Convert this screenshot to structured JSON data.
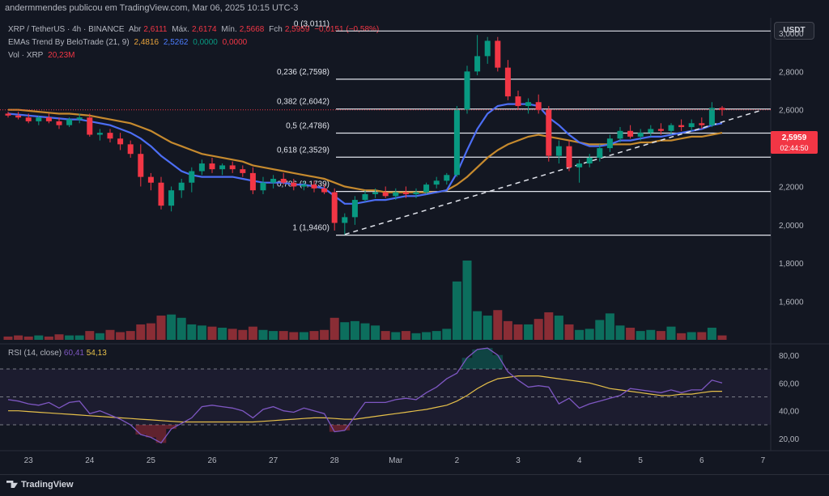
{
  "header": {
    "publisher": "andermmendes publicou em TradingView.com, Mar 06, 2025 10:15 UTC-3"
  },
  "legend": {
    "symbol": "XRP / TetherUS · 4h · BINANCE",
    "open_label": "Abr",
    "open": "2,6111",
    "high_label": "Máx.",
    "high": "2,6174",
    "low_label": "Mín.",
    "low": "2,5668",
    "close_label": "Fch",
    "close": "2,5959",
    "change": "−0,0151 (−0,58%)",
    "ema_name": "EMAs Trend By BeloTrade (21, 9)",
    "ema1": "2,4816",
    "ema2": "2,5262",
    "ema3": "0,0000",
    "ema4": "0,0000",
    "vol_label": "Vol · XRP",
    "vol_value": "20,23M"
  },
  "currency_button": "USDT",
  "price_badge": {
    "price": "2,5959",
    "countdown": "02:44:50"
  },
  "rsi_legend": {
    "name": "RSI (14, close)",
    "rsi": "60,41",
    "ma": "54,13"
  },
  "branding": "TradingView",
  "colors": {
    "up": "#089981",
    "down": "#f23645",
    "ema_fast": "#4c6ef5",
    "ema_slow": "#c68a2e",
    "rsi": "#7e57c2",
    "rsi_ma": "#e6c04a"
  },
  "chart_data": {
    "type": "candlestick",
    "title": "XRP / TetherUS · 4h · BINANCE",
    "price_axis": {
      "ticks": [
        "3,0000",
        "2,8000",
        "2,6000",
        "2,4000",
        "2,2000",
        "2,0000",
        "1,8000",
        "1,6000"
      ],
      "values": [
        3.0,
        2.8,
        2.6,
        2.4,
        2.2,
        2.0,
        1.8,
        1.6
      ],
      "range": [
        1.4,
        3.08
      ]
    },
    "x_ticks": [
      {
        "label": "23",
        "index": 2
      },
      {
        "label": "24",
        "index": 8
      },
      {
        "label": "25",
        "index": 14
      },
      {
        "label": "26",
        "index": 20
      },
      {
        "label": "27",
        "index": 26
      },
      {
        "label": "28",
        "index": 32
      },
      {
        "label": "Mar",
        "index": 38
      },
      {
        "label": "2",
        "index": 44
      },
      {
        "label": "3",
        "index": 50
      },
      {
        "label": "4",
        "index": 56
      },
      {
        "label": "5",
        "index": 62
      },
      {
        "label": "6",
        "index": 68
      },
      {
        "label": "7",
        "index": 74
      }
    ],
    "candles": [
      [
        2.58,
        2.59,
        2.56,
        2.57
      ],
      [
        2.57,
        2.59,
        2.55,
        2.56
      ],
      [
        2.56,
        2.58,
        2.53,
        2.54
      ],
      [
        2.54,
        2.57,
        2.52,
        2.56
      ],
      [
        2.56,
        2.58,
        2.53,
        2.54
      ],
      [
        2.54,
        2.56,
        2.5,
        2.52
      ],
      [
        2.52,
        2.56,
        2.51,
        2.55
      ],
      [
        2.55,
        2.58,
        2.53,
        2.56
      ],
      [
        2.56,
        2.58,
        2.46,
        2.47
      ],
      [
        2.47,
        2.5,
        2.44,
        2.48
      ],
      [
        2.48,
        2.5,
        2.43,
        2.45
      ],
      [
        2.45,
        2.48,
        2.39,
        2.42
      ],
      [
        2.42,
        2.44,
        2.35,
        2.37
      ],
      [
        2.37,
        2.42,
        2.2,
        2.25
      ],
      [
        2.25,
        2.27,
        2.18,
        2.22
      ],
      [
        2.22,
        2.25,
        2.08,
        2.1
      ],
      [
        2.1,
        2.2,
        2.07,
        2.18
      ],
      [
        2.18,
        2.24,
        2.14,
        2.22
      ],
      [
        2.22,
        2.3,
        2.17,
        2.28
      ],
      [
        2.28,
        2.34,
        2.26,
        2.32
      ],
      [
        2.32,
        2.35,
        2.27,
        2.29
      ],
      [
        2.29,
        2.32,
        2.26,
        2.31
      ],
      [
        2.31,
        2.33,
        2.27,
        2.29
      ],
      [
        2.29,
        2.31,
        2.25,
        2.27
      ],
      [
        2.27,
        2.3,
        2.16,
        2.18
      ],
      [
        2.18,
        2.25,
        2.16,
        2.22
      ],
      [
        2.22,
        2.26,
        2.19,
        2.24
      ],
      [
        2.24,
        2.27,
        2.21,
        2.22
      ],
      [
        2.22,
        2.24,
        2.18,
        2.2
      ],
      [
        2.2,
        2.23,
        2.18,
        2.21
      ],
      [
        2.21,
        2.23,
        2.17,
        2.19
      ],
      [
        2.19,
        2.21,
        2.16,
        2.17
      ],
      [
        2.17,
        2.19,
        1.97,
        2.01
      ],
      [
        2.01,
        2.06,
        1.95,
        2.04
      ],
      [
        2.04,
        2.15,
        2.0,
        2.13
      ],
      [
        2.13,
        2.18,
        2.12,
        2.16
      ],
      [
        2.16,
        2.19,
        2.14,
        2.17
      ],
      [
        2.17,
        2.2,
        2.14,
        2.15
      ],
      [
        2.15,
        2.19,
        2.13,
        2.17
      ],
      [
        2.17,
        2.2,
        2.14,
        2.16
      ],
      [
        2.16,
        2.19,
        2.14,
        2.17
      ],
      [
        2.17,
        2.22,
        2.16,
        2.21
      ],
      [
        2.21,
        2.25,
        2.19,
        2.23
      ],
      [
        2.23,
        2.27,
        2.21,
        2.26
      ],
      [
        2.26,
        2.62,
        2.25,
        2.6
      ],
      [
        2.6,
        2.83,
        2.58,
        2.8
      ],
      [
        2.8,
        2.99,
        2.78,
        2.88
      ],
      [
        2.88,
        2.98,
        2.84,
        2.96
      ],
      [
        2.96,
        2.98,
        2.8,
        2.82
      ],
      [
        2.82,
        2.86,
        2.65,
        2.67
      ],
      [
        2.67,
        2.7,
        2.6,
        2.62
      ],
      [
        2.62,
        2.66,
        2.58,
        2.64
      ],
      [
        2.64,
        2.68,
        2.58,
        2.6
      ],
      [
        2.6,
        2.62,
        2.33,
        2.36
      ],
      [
        2.36,
        2.44,
        2.32,
        2.41
      ],
      [
        2.41,
        2.44,
        2.28,
        2.3
      ],
      [
        2.3,
        2.34,
        2.22,
        2.32
      ],
      [
        2.32,
        2.37,
        2.3,
        2.35
      ],
      [
        2.35,
        2.42,
        2.33,
        2.4
      ],
      [
        2.4,
        2.47,
        2.38,
        2.45
      ],
      [
        2.45,
        2.51,
        2.43,
        2.49
      ],
      [
        2.49,
        2.52,
        2.45,
        2.46
      ],
      [
        2.46,
        2.5,
        2.44,
        2.48
      ],
      [
        2.48,
        2.52,
        2.46,
        2.5
      ],
      [
        2.5,
        2.53,
        2.47,
        2.49
      ],
      [
        2.49,
        2.53,
        2.47,
        2.52
      ],
      [
        2.52,
        2.55,
        2.49,
        2.51
      ],
      [
        2.51,
        2.55,
        2.49,
        2.53
      ],
      [
        2.53,
        2.56,
        2.5,
        2.52
      ],
      [
        2.52,
        2.64,
        2.51,
        2.61
      ],
      [
        2.61,
        2.62,
        2.57,
        2.6
      ]
    ],
    "volume": [
      3,
      4,
      3,
      4,
      3,
      5,
      4,
      4,
      8,
      6,
      9,
      7,
      8,
      14,
      15,
      22,
      23,
      20,
      14,
      13,
      12,
      11,
      10,
      9,
      12,
      9,
      8,
      8,
      7,
      7,
      8,
      9,
      20,
      16,
      17,
      15,
      13,
      8,
      7,
      8,
      6,
      7,
      8,
      10,
      53,
      72,
      26,
      22,
      27,
      17,
      14,
      14,
      19,
      25,
      22,
      14,
      9,
      10,
      18,
      24,
      13,
      11,
      8,
      9,
      8,
      12,
      6,
      7,
      7,
      11,
      4
    ],
    "ema_fast": [
      2.58,
      2.575,
      2.57,
      2.565,
      2.56,
      2.555,
      2.55,
      2.55,
      2.54,
      2.53,
      2.52,
      2.5,
      2.48,
      2.45,
      2.41,
      2.36,
      2.32,
      2.28,
      2.26,
      2.25,
      2.25,
      2.25,
      2.25,
      2.24,
      2.23,
      2.22,
      2.22,
      2.22,
      2.21,
      2.21,
      2.2,
      2.19,
      2.15,
      2.11,
      2.11,
      2.12,
      2.13,
      2.13,
      2.14,
      2.15,
      2.15,
      2.16,
      2.17,
      2.18,
      2.27,
      2.39,
      2.5,
      2.58,
      2.62,
      2.63,
      2.63,
      2.63,
      2.62,
      2.56,
      2.52,
      2.47,
      2.43,
      2.41,
      2.41,
      2.42,
      2.44,
      2.44,
      2.45,
      2.46,
      2.46,
      2.47,
      2.48,
      2.49,
      2.5,
      2.52,
      2.53
    ],
    "ema_slow": [
      2.6,
      2.6,
      2.595,
      2.59,
      2.585,
      2.58,
      2.58,
      2.575,
      2.57,
      2.56,
      2.55,
      2.54,
      2.53,
      2.51,
      2.49,
      2.46,
      2.43,
      2.41,
      2.39,
      2.37,
      2.36,
      2.35,
      2.34,
      2.33,
      2.31,
      2.3,
      2.29,
      2.28,
      2.27,
      2.26,
      2.25,
      2.24,
      2.22,
      2.2,
      2.19,
      2.18,
      2.18,
      2.17,
      2.17,
      2.17,
      2.17,
      2.17,
      2.17,
      2.18,
      2.21,
      2.25,
      2.3,
      2.35,
      2.39,
      2.42,
      2.44,
      2.46,
      2.47,
      2.46,
      2.45,
      2.44,
      2.43,
      2.42,
      2.42,
      2.42,
      2.42,
      2.42,
      2.43,
      2.43,
      2.44,
      2.44,
      2.45,
      2.46,
      2.46,
      2.47,
      2.48
    ],
    "fib_levels": [
      {
        "label": "0 (3,0111)",
        "value": 3.0111
      },
      {
        "label": "0,236 (2,7598)",
        "value": 2.7598
      },
      {
        "label": "0,382 (2,6042)",
        "value": 2.6042
      },
      {
        "label": "0,5 (2,4786)",
        "value": 2.4786
      },
      {
        "label": "0,618 (2,3529)",
        "value": 2.3529
      },
      {
        "label": "0,786 (2,1739)",
        "value": 2.1739
      },
      {
        "label": "1 (1,9460)",
        "value": 1.946
      }
    ],
    "trendline": {
      "from": {
        "index": 33,
        "price": 1.95
      },
      "to": {
        "index": 74,
        "price": 2.6
      }
    },
    "rsi": {
      "ticks": [
        "80,00",
        "60,00",
        "40,00",
        "20,00"
      ],
      "tick_values": [
        80,
        60,
        40,
        20
      ],
      "range": [
        12,
        88
      ],
      "upper_band": 70,
      "middle_band": 50,
      "lower_band": 30,
      "values": [
        48,
        47,
        45,
        44,
        46,
        42,
        46,
        47,
        38,
        40,
        37,
        34,
        30,
        23,
        21,
        17,
        27,
        31,
        35,
        43,
        44,
        43,
        42,
        40,
        35,
        41,
        43,
        40,
        39,
        42,
        40,
        38,
        25,
        26,
        36,
        46,
        46,
        46,
        48,
        49,
        48,
        53,
        57,
        63,
        67,
        78,
        84,
        85,
        80,
        68,
        62,
        57,
        58,
        57,
        45,
        49,
        42,
        45,
        47,
        49,
        51,
        56,
        55,
        54,
        53,
        55,
        53,
        55,
        55,
        62,
        60
      ],
      "ma": [
        40,
        40,
        39.5,
        39,
        38.5,
        38,
        37.5,
        37,
        36.5,
        36,
        35.5,
        35,
        34.5,
        34,
        33.5,
        33,
        32.5,
        32,
        32,
        32,
        32,
        32,
        32,
        32,
        32,
        32.5,
        33,
        33.5,
        34,
        34.5,
        35,
        35,
        34.5,
        34,
        34,
        35,
        36,
        37,
        38,
        39,
        40,
        41,
        42.5,
        44,
        47,
        51,
        56,
        60,
        63,
        64,
        65,
        65,
        65,
        64,
        63,
        62,
        61,
        60,
        58,
        56,
        55,
        54,
        53,
        52,
        51,
        51,
        52,
        52,
        53,
        54,
        54
      ]
    }
  }
}
